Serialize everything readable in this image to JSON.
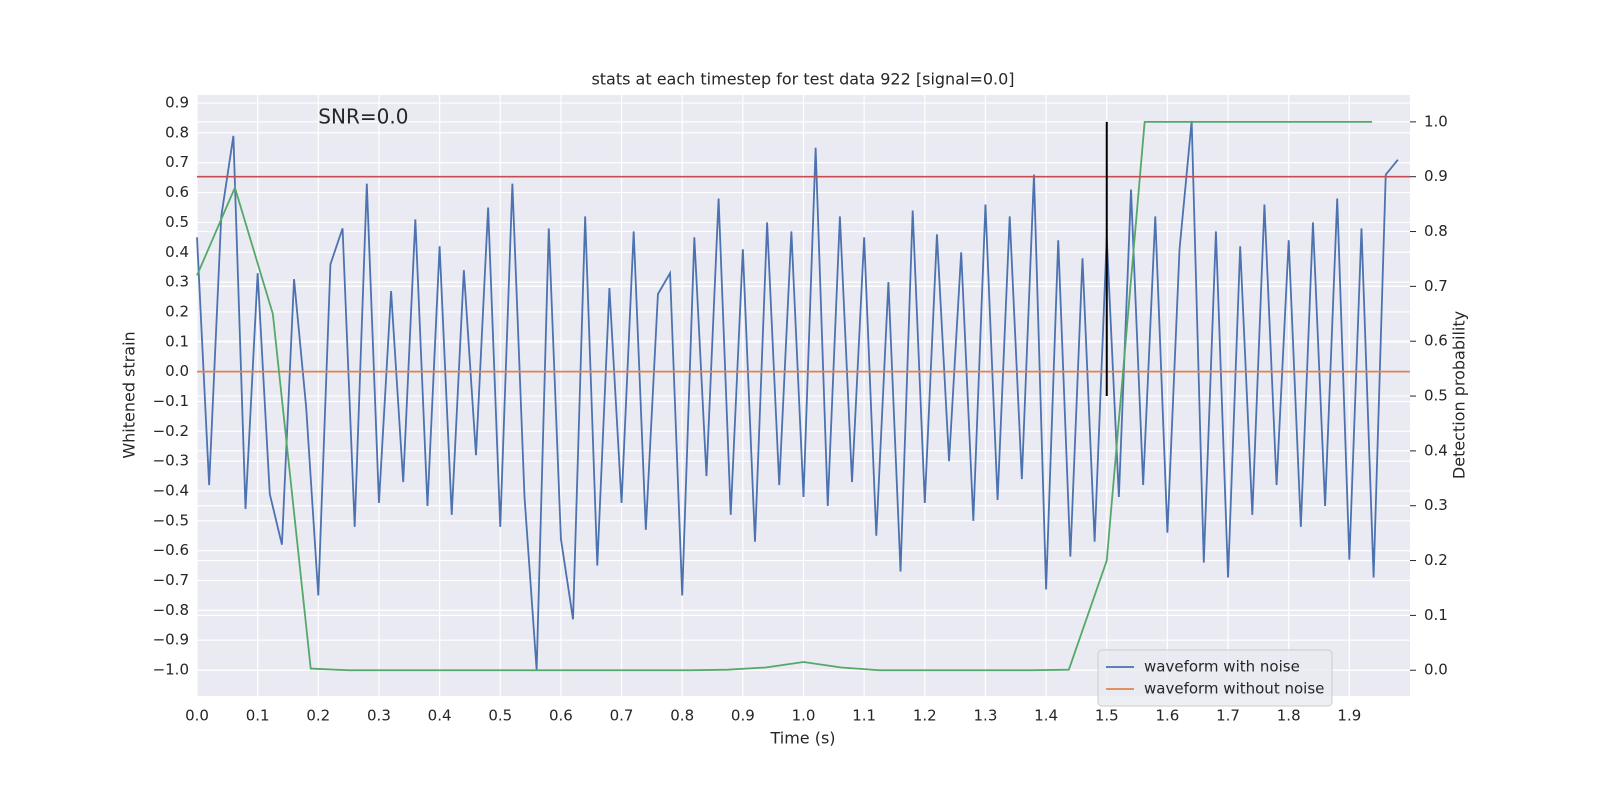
{
  "chart_data": {
    "type": "line",
    "title": "stats at each timestep for test data 922 [signal=0.0]",
    "xlabel": "Time (s)",
    "ylabel": "Whitened strain",
    "y2label": "Detection probability",
    "xlim": [
      0,
      2.0
    ],
    "ylim": [
      -1.087,
      0.927
    ],
    "y2lim": [
      -0.047,
      1.049
    ],
    "xticks": [
      {
        "value": 0,
        "label": "0.0"
      },
      0.1,
      0.2,
      0.3,
      0.4,
      0.5,
      0.6,
      0.7,
      0.8,
      0.9,
      {
        "value": 1,
        "label": "1.0"
      },
      1.1,
      1.2,
      1.3,
      1.4,
      1.5,
      1.6,
      1.7,
      1.8,
      1.9
    ],
    "yticks": [
      {
        "value": -1,
        "label": "−1.0"
      },
      {
        "value": -0.9,
        "label": "−0.9"
      },
      {
        "value": -0.8,
        "label": "−0.8"
      },
      {
        "value": -0.7,
        "label": "−0.7"
      },
      {
        "value": -0.6,
        "label": "−0.6"
      },
      {
        "value": -0.5,
        "label": "−0.5"
      },
      {
        "value": -0.4,
        "label": "−0.4"
      },
      {
        "value": -0.3,
        "label": "−0.3"
      },
      {
        "value": -0.2,
        "label": "−0.2"
      },
      {
        "value": -0.1,
        "label": "−0.1"
      },
      {
        "value": 0,
        "label": "0.0"
      },
      0.1,
      0.2,
      0.3,
      0.4,
      0.5,
      0.6,
      0.7,
      0.8,
      0.9
    ],
    "y2ticks": [
      {
        "value": 0,
        "label": "0.0"
      },
      0.1,
      0.2,
      0.3,
      0.4,
      0.5,
      0.6,
      0.7,
      0.8,
      0.9,
      {
        "value": 1,
        "label": "1.0"
      }
    ],
    "grid": true,
    "legend": "lower right",
    "series": [
      {
        "name": "waveform with noise",
        "color": "#4c72b0",
        "x": [
          0,
          0.02,
          0.04,
          0.06,
          0.08,
          0.1,
          0.12,
          0.14,
          0.16,
          0.18,
          0.2,
          0.22,
          0.24,
          0.26,
          0.28,
          0.3,
          0.32,
          0.34,
          0.36,
          0.38,
          0.4,
          0.42,
          0.44,
          0.46,
          0.48,
          0.5,
          0.52,
          0.54,
          0.56,
          0.58,
          0.6,
          0.62,
          0.64,
          0.66,
          0.68,
          0.7,
          0.72,
          0.74,
          0.76,
          0.78,
          0.8,
          0.82,
          0.84,
          0.86,
          0.88,
          0.9,
          0.92,
          0.94,
          0.96,
          0.98,
          1.0,
          1.02,
          1.04,
          1.06,
          1.08,
          1.1,
          1.12,
          1.14,
          1.16,
          1.18,
          1.2,
          1.22,
          1.24,
          1.26,
          1.28,
          1.3,
          1.32,
          1.34,
          1.36,
          1.38,
          1.4,
          1.42,
          1.44,
          1.46,
          1.48,
          1.5,
          1.52,
          1.54,
          1.56,
          1.58,
          1.6,
          1.62,
          1.64,
          1.66,
          1.68,
          1.7,
          1.72,
          1.74,
          1.76,
          1.78,
          1.8,
          1.82,
          1.84,
          1.86,
          1.88,
          1.9,
          1.92,
          1.94,
          1.96,
          1.98
        ],
        "values": [
          0.45,
          -0.38,
          0.52,
          0.79,
          -0.46,
          0.33,
          -0.41,
          -0.58,
          0.31,
          -0.12,
          -0.75,
          0.36,
          0.48,
          -0.52,
          0.63,
          -0.44,
          0.27,
          -0.37,
          0.51,
          -0.45,
          0.42,
          -0.48,
          0.34,
          -0.28,
          0.55,
          -0.52,
          0.63,
          -0.42,
          -1.0,
          0.48,
          -0.56,
          -0.83,
          0.52,
          -0.65,
          0.28,
          -0.44,
          0.47,
          -0.53,
          0.26,
          0.33,
          -0.75,
          0.45,
          -0.35,
          0.58,
          -0.48,
          0.41,
          -0.57,
          0.5,
          -0.38,
          0.47,
          -0.42,
          0.75,
          -0.45,
          0.52,
          -0.37,
          0.45,
          -0.55,
          0.3,
          -0.67,
          0.54,
          -0.44,
          0.46,
          -0.3,
          0.4,
          -0.5,
          0.56,
          -0.43,
          0.52,
          -0.36,
          0.66,
          -0.73,
          0.44,
          -0.62,
          0.38,
          -0.57,
          0.45,
          -0.42,
          0.61,
          -0.38,
          0.52,
          -0.54,
          0.41,
          0.84,
          -0.64,
          0.47,
          -0.69,
          0.42,
          -0.48,
          0.56,
          -0.38,
          0.44,
          -0.52,
          0.5,
          -0.45,
          0.58,
          -0.63,
          0.48,
          -0.69,
          0.66,
          0.71
        ]
      },
      {
        "name": "waveform without noise",
        "color": "#dd8452",
        "x": [
          0,
          2.0
        ],
        "values": [
          0,
          0
        ]
      },
      {
        "color": "#55a868",
        "axis": "y2",
        "x": [
          0,
          0.0625,
          0.125,
          0.1875,
          0.25,
          0.3125,
          0.375,
          0.4375,
          0.5,
          0.5625,
          0.625,
          0.6875,
          0.75,
          0.8125,
          0.875,
          0.9375,
          1.0,
          1.0625,
          1.125,
          1.1875,
          1.25,
          1.3125,
          1.375,
          1.4375,
          1.5,
          1.5625,
          1.625,
          1.6875,
          1.75,
          1.8125,
          1.875,
          1.9375
        ],
        "values": [
          0.72,
          0.88,
          0.65,
          0.003,
          0,
          0,
          0,
          0,
          0,
          0,
          0,
          0,
          0,
          0,
          0.001,
          0.005,
          0.015,
          0.005,
          0,
          0,
          0,
          0,
          0,
          0.001,
          0.2,
          1.0,
          1.0,
          1.0,
          1.0,
          1.0,
          1.0,
          1.0
        ]
      }
    ],
    "hlines": [
      {
        "y": 0.9,
        "axis": "y2",
        "color": "#c44e52"
      }
    ],
    "vlines": [
      {
        "x": 1.5,
        "ymin": 0.5,
        "ymax": 1.0,
        "axis": "y2",
        "color": "#000000"
      }
    ],
    "annotations": [
      {
        "text": "SNR=0.0",
        "x": 0.2,
        "y": 0.85
      }
    ]
  }
}
